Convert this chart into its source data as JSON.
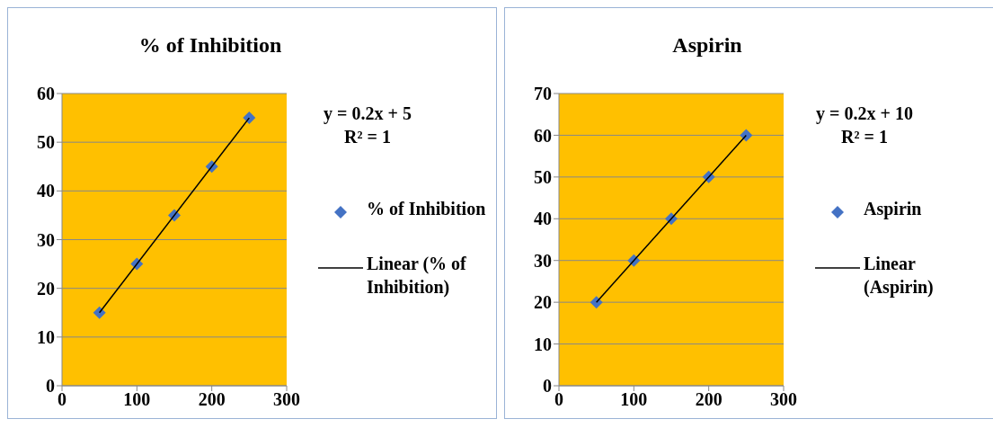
{
  "chart_data": [
    {
      "type": "scatter",
      "title": "% of Inhibition",
      "xlim": [
        0,
        300
      ],
      "xticks": [
        0,
        100,
        200,
        300
      ],
      "ylim": [
        0,
        60
      ],
      "yticks": [
        0,
        10,
        20,
        30,
        40,
        50,
        60
      ],
      "grid": "y",
      "legend": "right",
      "annotations": [
        "y = 0.2x + 5",
        "R² = 1"
      ],
      "series": [
        {
          "name": "% of Inhibition",
          "color": "#4472c4",
          "marker": "diamond",
          "x": [
            50,
            100,
            150,
            200,
            250
          ],
          "values": [
            15,
            25,
            35,
            45,
            55
          ]
        },
        {
          "name": "Linear (% of Inhibition)",
          "type": "line",
          "marker": "none",
          "color": "#000000",
          "x": [
            50,
            250
          ],
          "values": [
            15,
            55
          ]
        }
      ]
    },
    {
      "type": "scatter",
      "title": "Aspirin",
      "xlim": [
        0,
        300
      ],
      "xticks": [
        0,
        100,
        200,
        300
      ],
      "ylim": [
        0,
        70
      ],
      "yticks": [
        0,
        10,
        20,
        30,
        40,
        50,
        60,
        70
      ],
      "grid": "y",
      "legend": "right",
      "annotations": [
        "y = 0.2x + 10",
        "R² = 1"
      ],
      "series": [
        {
          "name": "Aspirin",
          "color": "#4472c4",
          "marker": "diamond",
          "x": [
            50,
            100,
            150,
            200,
            250
          ],
          "values": [
            20,
            30,
            40,
            50,
            60
          ]
        },
        {
          "name": "Linear (Aspirin)",
          "type": "line",
          "marker": "none",
          "color": "#000000",
          "x": [
            50,
            250
          ],
          "values": [
            20,
            60
          ]
        }
      ]
    }
  ]
}
